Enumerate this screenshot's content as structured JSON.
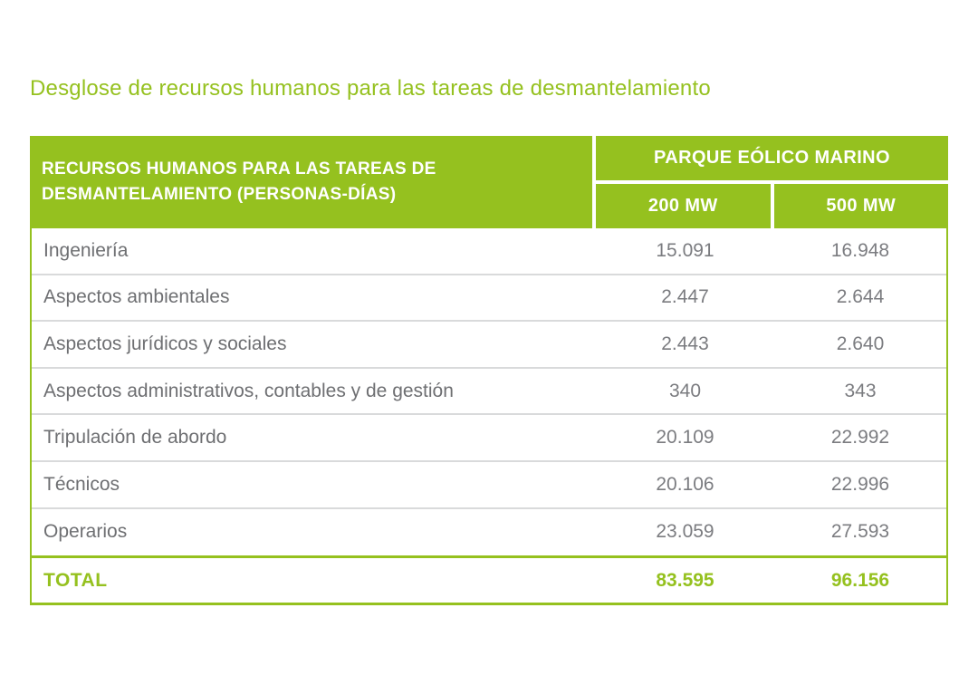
{
  "page": {
    "title": "Desglose de recursos humanos para las tareas de desmantelamiento"
  },
  "table": {
    "header": {
      "row_header_line1": "RECURSOS HUMANOS PARA LAS TAREAS DE",
      "row_header_line2": "DESMANTELAMIENTO (PERSONAS-DÍAS)",
      "group_header": "PARQUE EÓLICO MARINO",
      "col_200": "200 MW",
      "col_500": "500 MW"
    },
    "rows": [
      {
        "label": "Ingeniería",
        "values": [
          "15.091",
          "16.948"
        ]
      },
      {
        "label": "Aspectos ambientales",
        "values": [
          "2.447",
          "2.644"
        ]
      },
      {
        "label": "Aspectos jurídicos y sociales",
        "values": [
          "2.443",
          "2.640"
        ]
      },
      {
        "label": "Aspectos administrativos, contables y de gestión",
        "values": [
          "340",
          "343"
        ]
      },
      {
        "label": "Tripulación de abordo",
        "values": [
          "20.109",
          "22.992"
        ]
      },
      {
        "label": "Técnicos",
        "values": [
          "20.106",
          "22.996"
        ]
      },
      {
        "label": "Operarios",
        "values": [
          "23.059",
          "27.593"
        ]
      }
    ],
    "total": {
      "label": "TOTAL",
      "values": [
        "83.595",
        "96.156"
      ]
    }
  },
  "colors": {
    "accent_green": "#95c11f",
    "header_text": "#ffffff",
    "label_gray": "#6e6f72",
    "value_gray": "#7b7c80",
    "row_divider": "#d9dadb"
  },
  "chart_data": {
    "type": "table",
    "title": "Desglose de recursos humanos para las tareas de desmantelamiento",
    "row_header": "RECURSOS HUMANOS PARA LAS TAREAS DE DESMANTELAMIENTO (PERSONAS-DÍAS)",
    "group_header": "PARQUE EÓLICO MARINO",
    "columns": [
      "200 MW",
      "500 MW"
    ],
    "categories": [
      "Ingeniería",
      "Aspectos ambientales",
      "Aspectos jurídicos y sociales",
      "Aspectos administrativos, contables y de gestión",
      "Tripulación de abordo",
      "Técnicos",
      "Operarios"
    ],
    "series": [
      {
        "name": "200 MW",
        "values": [
          15091,
          2447,
          2443,
          340,
          20109,
          20106,
          23059
        ]
      },
      {
        "name": "500 MW",
        "values": [
          16948,
          2644,
          2640,
          343,
          22992,
          22996,
          27593
        ]
      }
    ],
    "totals": {
      "label": "TOTAL",
      "mw200": 83595,
      "mw500": 96156
    },
    "units": "personas-días",
    "number_format": "es-ES (punto como separador de miles)"
  }
}
